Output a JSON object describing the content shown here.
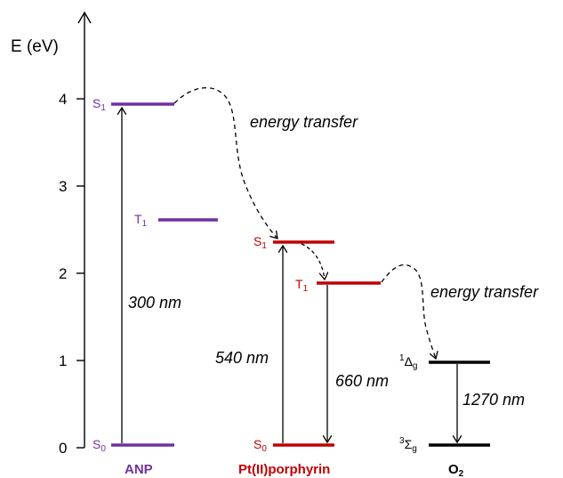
{
  "axis": {
    "title": "E (eV)",
    "ticks": [
      {
        "value": 0,
        "label": "0"
      },
      {
        "value": 1,
        "label": "1"
      },
      {
        "value": 2,
        "label": "2"
      },
      {
        "value": 3,
        "label": "3"
      },
      {
        "value": 4,
        "label": "4"
      }
    ]
  },
  "molecules": {
    "anp": {
      "name": "ANP",
      "color": "#7030a0"
    },
    "pt": {
      "name": "Pt(II)porphyrin",
      "color": "#c00000"
    },
    "o2": {
      "name": "O",
      "name_sub": "2",
      "color": "#000000"
    }
  },
  "levels": {
    "anp_s1": {
      "main": "S",
      "sub": "1",
      "energy": 3.9
    },
    "anp_t1": {
      "main": "T",
      "sub": "1",
      "energy": 2.6
    },
    "anp_s0": {
      "main": "S",
      "sub": "0",
      "energy": 0.0
    },
    "pt_s1": {
      "main": "S",
      "sub": "1",
      "energy": 2.35
    },
    "pt_t1": {
      "main": "T",
      "sub": "1",
      "energy": 1.88
    },
    "pt_s0": {
      "main": "S",
      "sub": "0",
      "energy": 0.0
    },
    "o2_1dg": {
      "pre": "1",
      "main": "Δ",
      "sub": "g",
      "energy": 0.98
    },
    "o2_3sg": {
      "pre": "3",
      "main": "Σ",
      "sub": "g",
      "energy": 0.0
    }
  },
  "transitions": {
    "anp_abs": "300 nm",
    "pt_abs": "540 nm",
    "pt_em": "660 nm",
    "o2_em": "1270 nm",
    "et1": "energy transfer",
    "et2": "energy transfer"
  }
}
